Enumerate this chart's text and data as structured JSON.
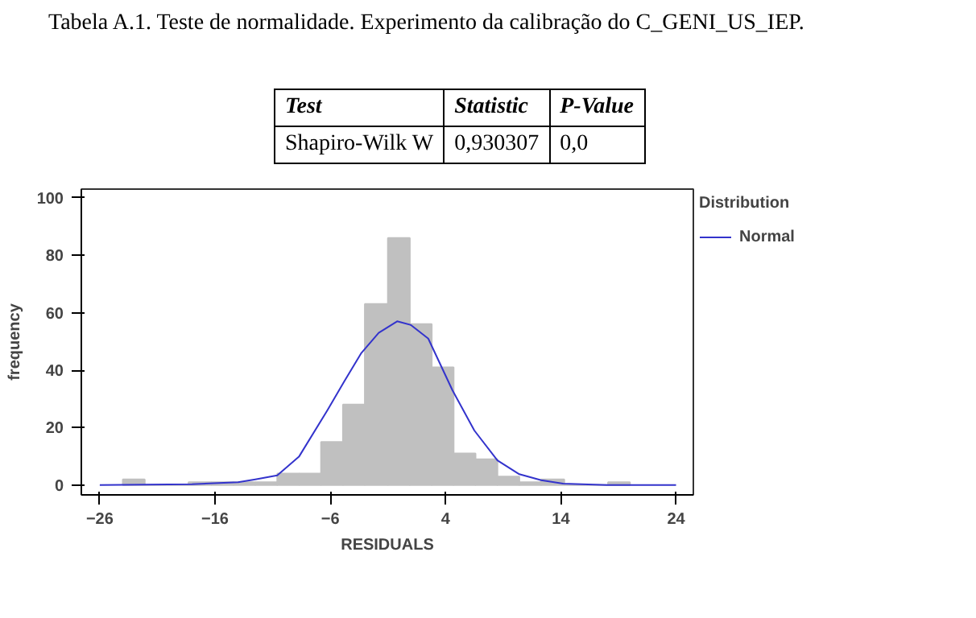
{
  "chart_data": {
    "type": "histogram",
    "title": "Tabela A.1. Teste de normalidade. Experimento da calibração do C_GENI_US_IEP.",
    "annotations": [
      "Test",
      "Statistic",
      "P-Value",
      "Shapiro-Wilk W",
      "0,930307",
      "0,0"
    ],
    "bins": [
      -24,
      -22.1,
      -20.2,
      -18.3,
      -16.3,
      -14.4,
      -12.5,
      -10.6,
      -8.7,
      -6.8,
      -4.9,
      -3.0,
      -1.0,
      0.9,
      2.8,
      4.7,
      6.6,
      8.5,
      10.4,
      12.3,
      14.3,
      16.2,
      18.1,
      20.0
    ],
    "values": [
      2,
      0,
      0,
      1,
      1,
      1,
      1,
      4,
      4,
      15,
      28,
      63,
      86,
      56,
      41,
      11,
      9,
      3,
      1,
      2,
      0,
      0,
      1
    ],
    "color": "#c0c0c0",
    "series": [
      {
        "type": "line",
        "name": "Normal",
        "color": "#3333cc",
        "x": [
          -26,
          -18,
          -14,
          -12.5,
          -10.6,
          -8.7,
          -6.3,
          -4.8,
          -3.3,
          -1.8,
          -0.2,
          1,
          2.5,
          4.6,
          6.5,
          8.5,
          10.4,
          12.3,
          14.2,
          18,
          24
        ],
        "values": [
          0,
          0.3,
          1,
          2,
          3.4,
          10,
          25.7,
          36,
          46,
          53,
          57,
          55.7,
          51,
          33,
          19,
          8.6,
          3.8,
          1.7,
          0.5,
          0,
          0
        ]
      }
    ],
    "legend_title": "Distribution",
    "legend": "top right",
    "xlabel": "RESIDUALS",
    "ylabel": "frequency",
    "xlim": [
      -27.6,
      25.5
    ],
    "xticks": [
      -26,
      -16,
      -6,
      4,
      14,
      24
    ],
    "ylim": [
      -3.4,
      103
    ],
    "yticks": [
      0,
      20,
      40,
      60,
      80,
      100
    ],
    "grid": false
  }
}
